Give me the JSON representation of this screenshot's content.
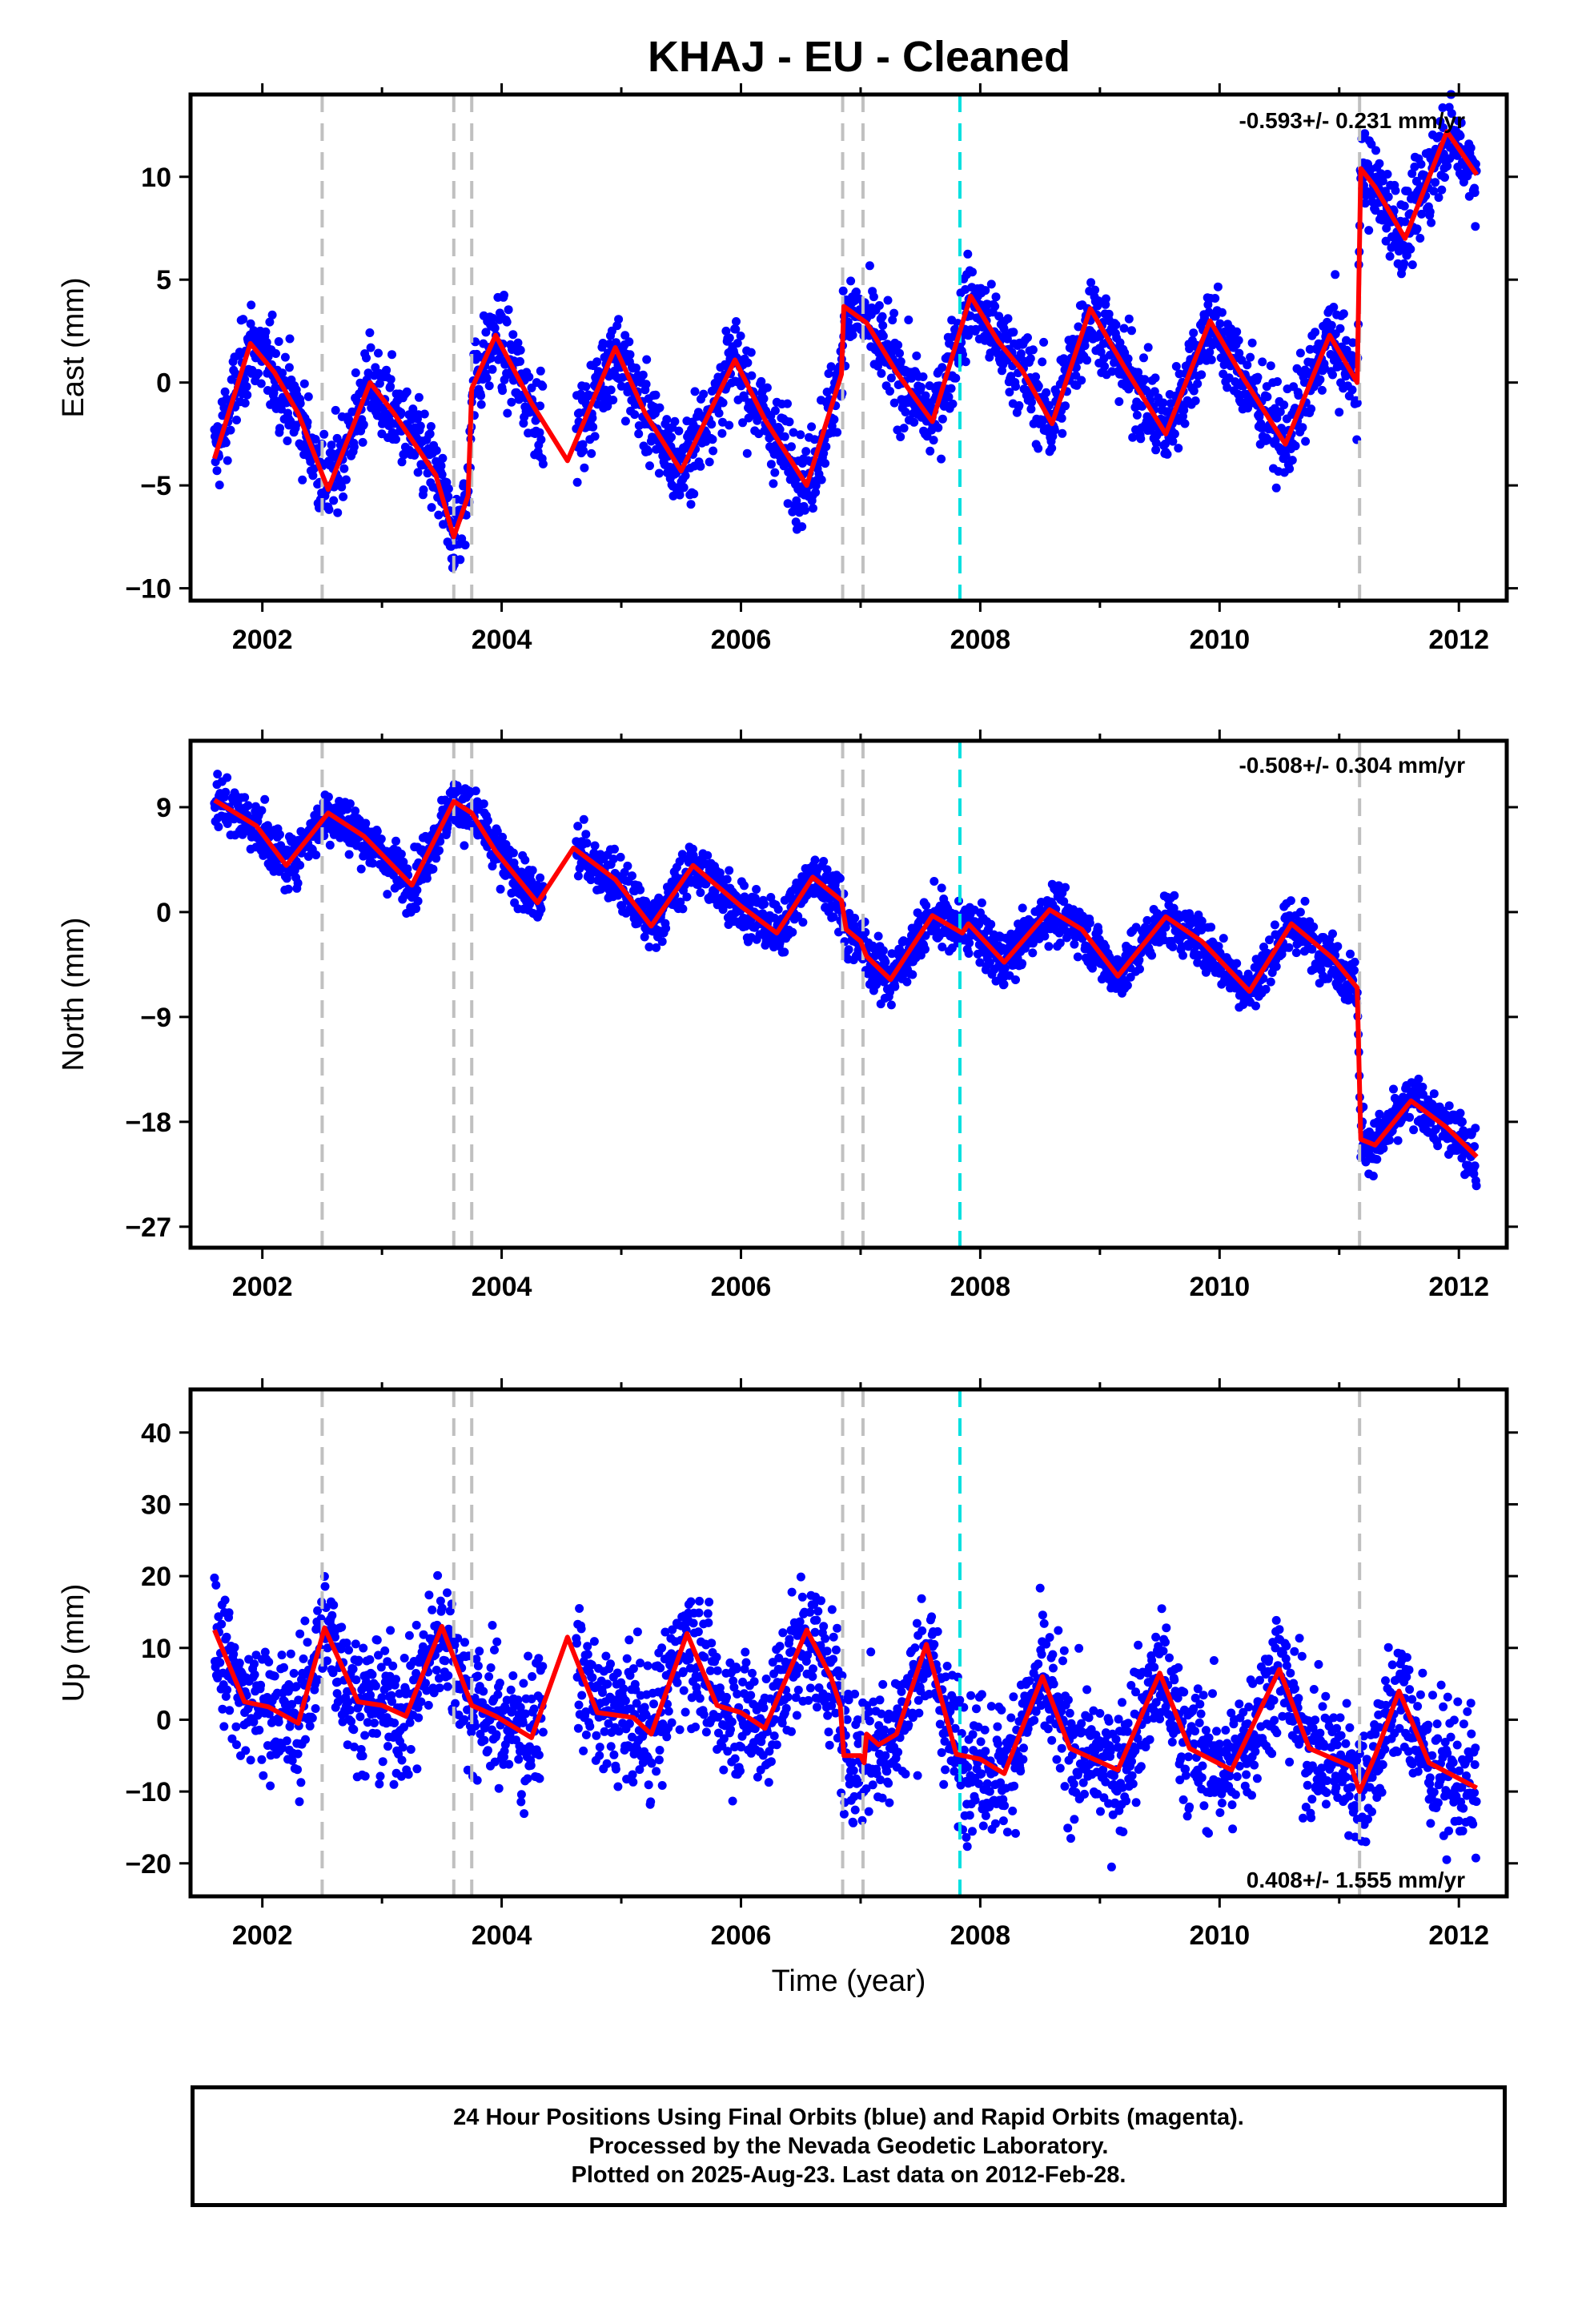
{
  "title": "KHAJ  - EU - Cleaned",
  "xlabel": "Time (year)",
  "caption": [
    "24 Hour Positions Using Final Orbits (blue) and Rapid Orbits (magenta).",
    "Processed by the Nevada Geodetic Laboratory.",
    "Plotted on 2025-Aug-23. Last data on 2012-Feb-28."
  ],
  "colors": {
    "points": "#0000ff",
    "model": "#ff0000",
    "event_gray": "#c0c0c0",
    "event_cyan": "#00e0e0"
  },
  "chart_data": [
    {
      "type": "scatter",
      "component": "east",
      "ylabel": "East (mm)",
      "rate_text": "-0.593+/- 0.231 mm/yr",
      "xlim": [
        2001.4,
        2012.4
      ],
      "ylim": [
        -10.6,
        14.0
      ],
      "yticks": [
        -10,
        -5,
        0,
        5,
        10
      ],
      "xticks": [
        2002,
        2004,
        2006,
        2008,
        2010,
        2012
      ],
      "event_lines": [
        2002.5,
        2003.6,
        2003.75,
        2006.85,
        2007.02,
        2011.17
      ],
      "cyan_lines": [
        2007.83
      ],
      "model": [
        [
          2001.6,
          -3.7
        ],
        [
          2001.9,
          1.9
        ],
        [
          2002.1,
          0.5
        ],
        [
          2002.3,
          -1.5
        ],
        [
          2002.55,
          -5.2
        ],
        [
          2002.9,
          0
        ],
        [
          2003.1,
          -1.5
        ],
        [
          2003.45,
          -4.5
        ],
        [
          2003.6,
          -7.5
        ],
        [
          2003.72,
          -5.5
        ],
        [
          2003.75,
          -0.3
        ],
        [
          2003.95,
          2.3
        ],
        [
          2004.25,
          -1
        ],
        [
          2004.55,
          -3.8
        ],
        [
          2004.95,
          1.7
        ],
        [
          2005.2,
          -1.5
        ],
        [
          2005.5,
          -4.3
        ],
        [
          2005.95,
          1.1
        ],
        [
          2006.2,
          -1.8
        ],
        [
          2006.55,
          -5
        ],
        [
          2006.84,
          0.4
        ],
        [
          2006.86,
          3.7
        ],
        [
          2007.05,
          2.9
        ],
        [
          2007.3,
          0.5
        ],
        [
          2007.6,
          -1.9
        ],
        [
          2007.92,
          4.2
        ],
        [
          2008.15,
          2
        ],
        [
          2008.35,
          0.6
        ],
        [
          2008.6,
          -2
        ],
        [
          2008.92,
          3.6
        ],
        [
          2009.2,
          0.8
        ],
        [
          2009.55,
          -2.5
        ],
        [
          2009.92,
          3
        ],
        [
          2010.2,
          0.2
        ],
        [
          2010.55,
          -3
        ],
        [
          2010.92,
          2.3
        ],
        [
          2011.15,
          0
        ],
        [
          2011.18,
          10.4
        ],
        [
          2011.3,
          9.5
        ],
        [
          2011.55,
          7
        ],
        [
          2011.9,
          12.2
        ],
        [
          2012.15,
          10.1
        ]
      ],
      "points": []
    },
    {
      "type": "scatter",
      "component": "north",
      "ylabel": "North (mm)",
      "rate_text": "-0.508+/- 0.304 mm/yr",
      "xlim": [
        2001.4,
        2012.4
      ],
      "ylim": [
        -28.8,
        14.7
      ],
      "yticks": [
        -27,
        -18,
        -9,
        0,
        9
      ],
      "xticks": [
        2002,
        2004,
        2006,
        2008,
        2010,
        2012
      ],
      "event_lines": [
        2002.5,
        2003.6,
        2003.75,
        2006.85,
        2007.02,
        2011.17
      ],
      "cyan_lines": [
        2007.83
      ],
      "model": [
        [
          2001.6,
          9.6
        ],
        [
          2001.95,
          7.4
        ],
        [
          2002.2,
          4
        ],
        [
          2002.55,
          8.5
        ],
        [
          2002.85,
          6.5
        ],
        [
          2003.25,
          2.3
        ],
        [
          2003.6,
          9.5
        ],
        [
          2003.75,
          8.5
        ],
        [
          2003.95,
          5.2
        ],
        [
          2004.3,
          0.8
        ],
        [
          2004.6,
          5.5
        ],
        [
          2004.95,
          2.8
        ],
        [
          2005.25,
          -1.2
        ],
        [
          2005.6,
          4
        ],
        [
          2006,
          0.5
        ],
        [
          2006.3,
          -1.8
        ],
        [
          2006.6,
          3
        ],
        [
          2006.84,
          1
        ],
        [
          2006.88,
          -1.5
        ],
        [
          2007,
          -2.5
        ],
        [
          2007.05,
          -3.8
        ],
        [
          2007.25,
          -5.8
        ],
        [
          2007.6,
          -0.3
        ],
        [
          2007.85,
          -1.8
        ],
        [
          2007.9,
          -1
        ],
        [
          2008.2,
          -4.3
        ],
        [
          2008.58,
          0.2
        ],
        [
          2008.85,
          -1.5
        ],
        [
          2009.15,
          -5.5
        ],
        [
          2009.55,
          -0.4
        ],
        [
          2009.85,
          -2.5
        ],
        [
          2010.25,
          -6.8
        ],
        [
          2010.6,
          -1
        ],
        [
          2010.95,
          -4
        ],
        [
          2011.15,
          -6.5
        ],
        [
          2011.18,
          -19.5
        ],
        [
          2011.3,
          -20
        ],
        [
          2011.6,
          -16.2
        ],
        [
          2011.9,
          -18.5
        ],
        [
          2012.15,
          -21
        ]
      ],
      "points": []
    },
    {
      "type": "scatter",
      "component": "up",
      "ylabel": "Up (mm)",
      "rate_text": "0.408+/- 1.555 mm/yr",
      "xlim": [
        2001.4,
        2012.4
      ],
      "ylim": [
        -24.6,
        46.0
      ],
      "yticks": [
        -20,
        -10,
        0,
        10,
        20,
        30,
        40
      ],
      "xticks": [
        2002,
        2004,
        2006,
        2008,
        2010,
        2012
      ],
      "event_lines": [
        2002.5,
        2003.6,
        2003.75,
        2006.85,
        2007.02,
        2011.17
      ],
      "cyan_lines": [
        2007.83
      ],
      "model": [
        [
          2001.6,
          12.5
        ],
        [
          2001.85,
          2.5
        ],
        [
          2002.05,
          1.8
        ],
        [
          2002.3,
          -0.5
        ],
        [
          2002.52,
          12.8
        ],
        [
          2002.8,
          2.5
        ],
        [
          2003.0,
          2
        ],
        [
          2003.2,
          0.5
        ],
        [
          2003.5,
          13
        ],
        [
          2003.75,
          2
        ],
        [
          2003.95,
          0.5
        ],
        [
          2004.25,
          -2.5
        ],
        [
          2004.55,
          11.5
        ],
        [
          2004.8,
          1
        ],
        [
          2005.1,
          0.3
        ],
        [
          2005.25,
          -2
        ],
        [
          2005.55,
          12
        ],
        [
          2005.8,
          2
        ],
        [
          2006.0,
          1
        ],
        [
          2006.2,
          -1.2
        ],
        [
          2006.55,
          12.5
        ],
        [
          2006.75,
          6
        ],
        [
          2006.83,
          2
        ],
        [
          2006.86,
          -5
        ],
        [
          2007.0,
          -5
        ],
        [
          2007.03,
          -6
        ],
        [
          2007.05,
          -2
        ],
        [
          2007.15,
          -3.5
        ],
        [
          2007.3,
          -2
        ],
        [
          2007.55,
          10.5
        ],
        [
          2007.8,
          -4.8
        ],
        [
          2008.0,
          -5.5
        ],
        [
          2008.2,
          -7.5
        ],
        [
          2008.52,
          6
        ],
        [
          2008.75,
          -4
        ],
        [
          2009.15,
          -7
        ],
        [
          2009.5,
          6.5
        ],
        [
          2009.75,
          -4
        ],
        [
          2010.1,
          -7
        ],
        [
          2010.5,
          7
        ],
        [
          2010.75,
          -4
        ],
        [
          2011.1,
          -6.5
        ],
        [
          2011.17,
          -10
        ],
        [
          2011.3,
          -5
        ],
        [
          2011.5,
          4
        ],
        [
          2011.75,
          -6
        ],
        [
          2012.15,
          -9.5
        ]
      ],
      "points": []
    }
  ]
}
